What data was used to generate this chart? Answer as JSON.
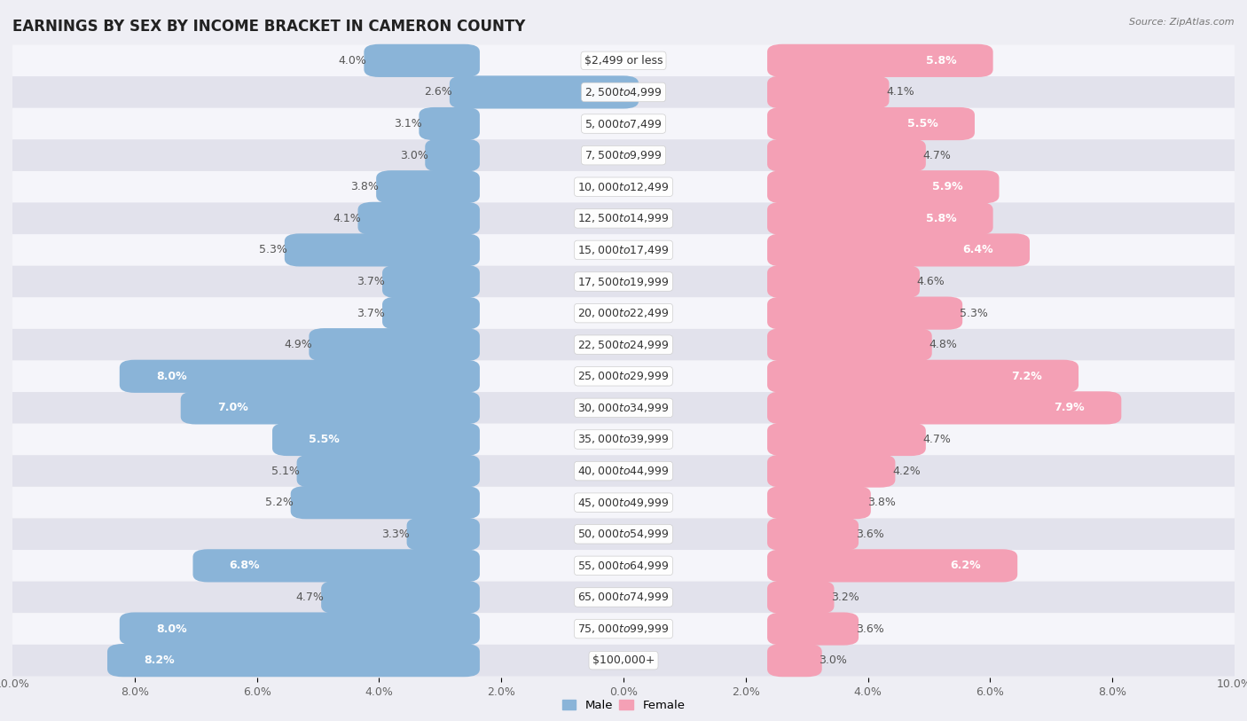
{
  "title": "EARNINGS BY SEX BY INCOME BRACKET IN CAMERON COUNTY",
  "source": "Source: ZipAtlas.com",
  "categories": [
    "$2,499 or less",
    "$2,500 to $4,999",
    "$5,000 to $7,499",
    "$7,500 to $9,999",
    "$10,000 to $12,499",
    "$12,500 to $14,999",
    "$15,000 to $17,499",
    "$17,500 to $19,999",
    "$20,000 to $22,499",
    "$22,500 to $24,999",
    "$25,000 to $29,999",
    "$30,000 to $34,999",
    "$35,000 to $39,999",
    "$40,000 to $44,999",
    "$45,000 to $49,999",
    "$50,000 to $54,999",
    "$55,000 to $64,999",
    "$65,000 to $74,999",
    "$75,000 to $99,999",
    "$100,000+"
  ],
  "male_values": [
    4.0,
    2.6,
    3.1,
    3.0,
    3.8,
    4.1,
    5.3,
    3.7,
    3.7,
    4.9,
    8.0,
    7.0,
    5.5,
    5.1,
    5.2,
    3.3,
    6.8,
    4.7,
    8.0,
    8.2
  ],
  "female_values": [
    5.8,
    4.1,
    5.5,
    4.7,
    5.9,
    5.8,
    6.4,
    4.6,
    5.3,
    4.8,
    7.2,
    7.9,
    4.7,
    4.2,
    3.8,
    3.6,
    6.2,
    3.2,
    3.6,
    3.0
  ],
  "male_color": "#8ab4d8",
  "female_color": "#f4a0b5",
  "background_color": "#eeeef4",
  "row_color_light": "#f5f5fa",
  "row_color_dark": "#e2e2ec",
  "axis_limit": 10.0,
  "bar_height": 0.55,
  "title_fontsize": 12,
  "label_fontsize": 9,
  "tick_fontsize": 9,
  "category_fontsize": 9,
  "white_label_threshold": 5.5
}
